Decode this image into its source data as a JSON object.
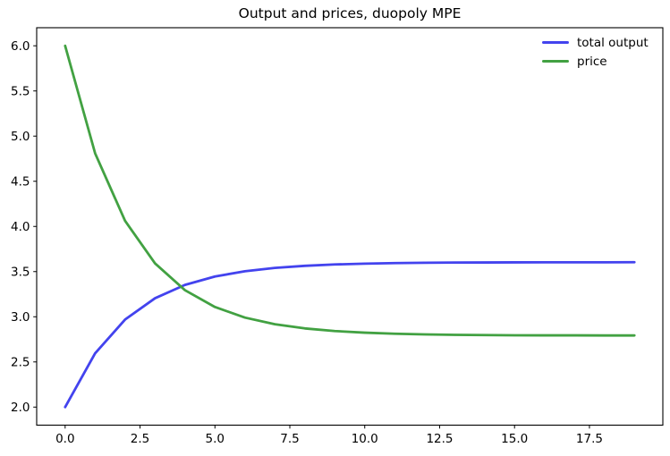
{
  "chart_data": {
    "type": "line",
    "title": "Output and prices, duopoly MPE",
    "xlabel": "",
    "ylabel": "",
    "x": [
      0,
      1,
      2,
      3,
      4,
      5,
      6,
      7,
      8,
      9,
      10,
      11,
      12,
      13,
      14,
      15,
      16,
      17,
      18,
      19
    ],
    "series": [
      {
        "name": "total output",
        "color": "#4343ee",
        "values": [
          2.0,
          2.595,
          2.969,
          3.205,
          3.353,
          3.446,
          3.504,
          3.541,
          3.564,
          3.579,
          3.588,
          3.594,
          3.598,
          3.6,
          3.601,
          3.602,
          3.603,
          3.603,
          3.603,
          3.604
        ]
      },
      {
        "name": "price",
        "color": "#42a142",
        "values": [
          6.0,
          4.81,
          4.062,
          3.591,
          3.294,
          3.108,
          2.991,
          2.917,
          2.871,
          2.842,
          2.824,
          2.812,
          2.805,
          2.8,
          2.797,
          2.795,
          2.794,
          2.794,
          2.793,
          2.793
        ]
      }
    ],
    "xlim": [
      -0.95,
      19.95
    ],
    "ylim": [
      1.8,
      6.2
    ],
    "xticks": [
      0.0,
      2.5,
      5.0,
      7.5,
      10.0,
      12.5,
      15.0,
      17.5
    ],
    "xtick_labels": [
      "0.0",
      "2.5",
      "5.0",
      "7.5",
      "10.0",
      "12.5",
      "15.0",
      "17.5"
    ],
    "yticks": [
      2.0,
      2.5,
      3.0,
      3.5,
      4.0,
      4.5,
      5.0,
      5.5,
      6.0
    ],
    "ytick_labels": [
      "2.0",
      "2.5",
      "3.0",
      "3.5",
      "4.0",
      "4.5",
      "5.0",
      "5.5",
      "6.0"
    ],
    "grid": false,
    "legend_position": "upper right",
    "frame_color": "#000000",
    "line_width": 2.8
  }
}
